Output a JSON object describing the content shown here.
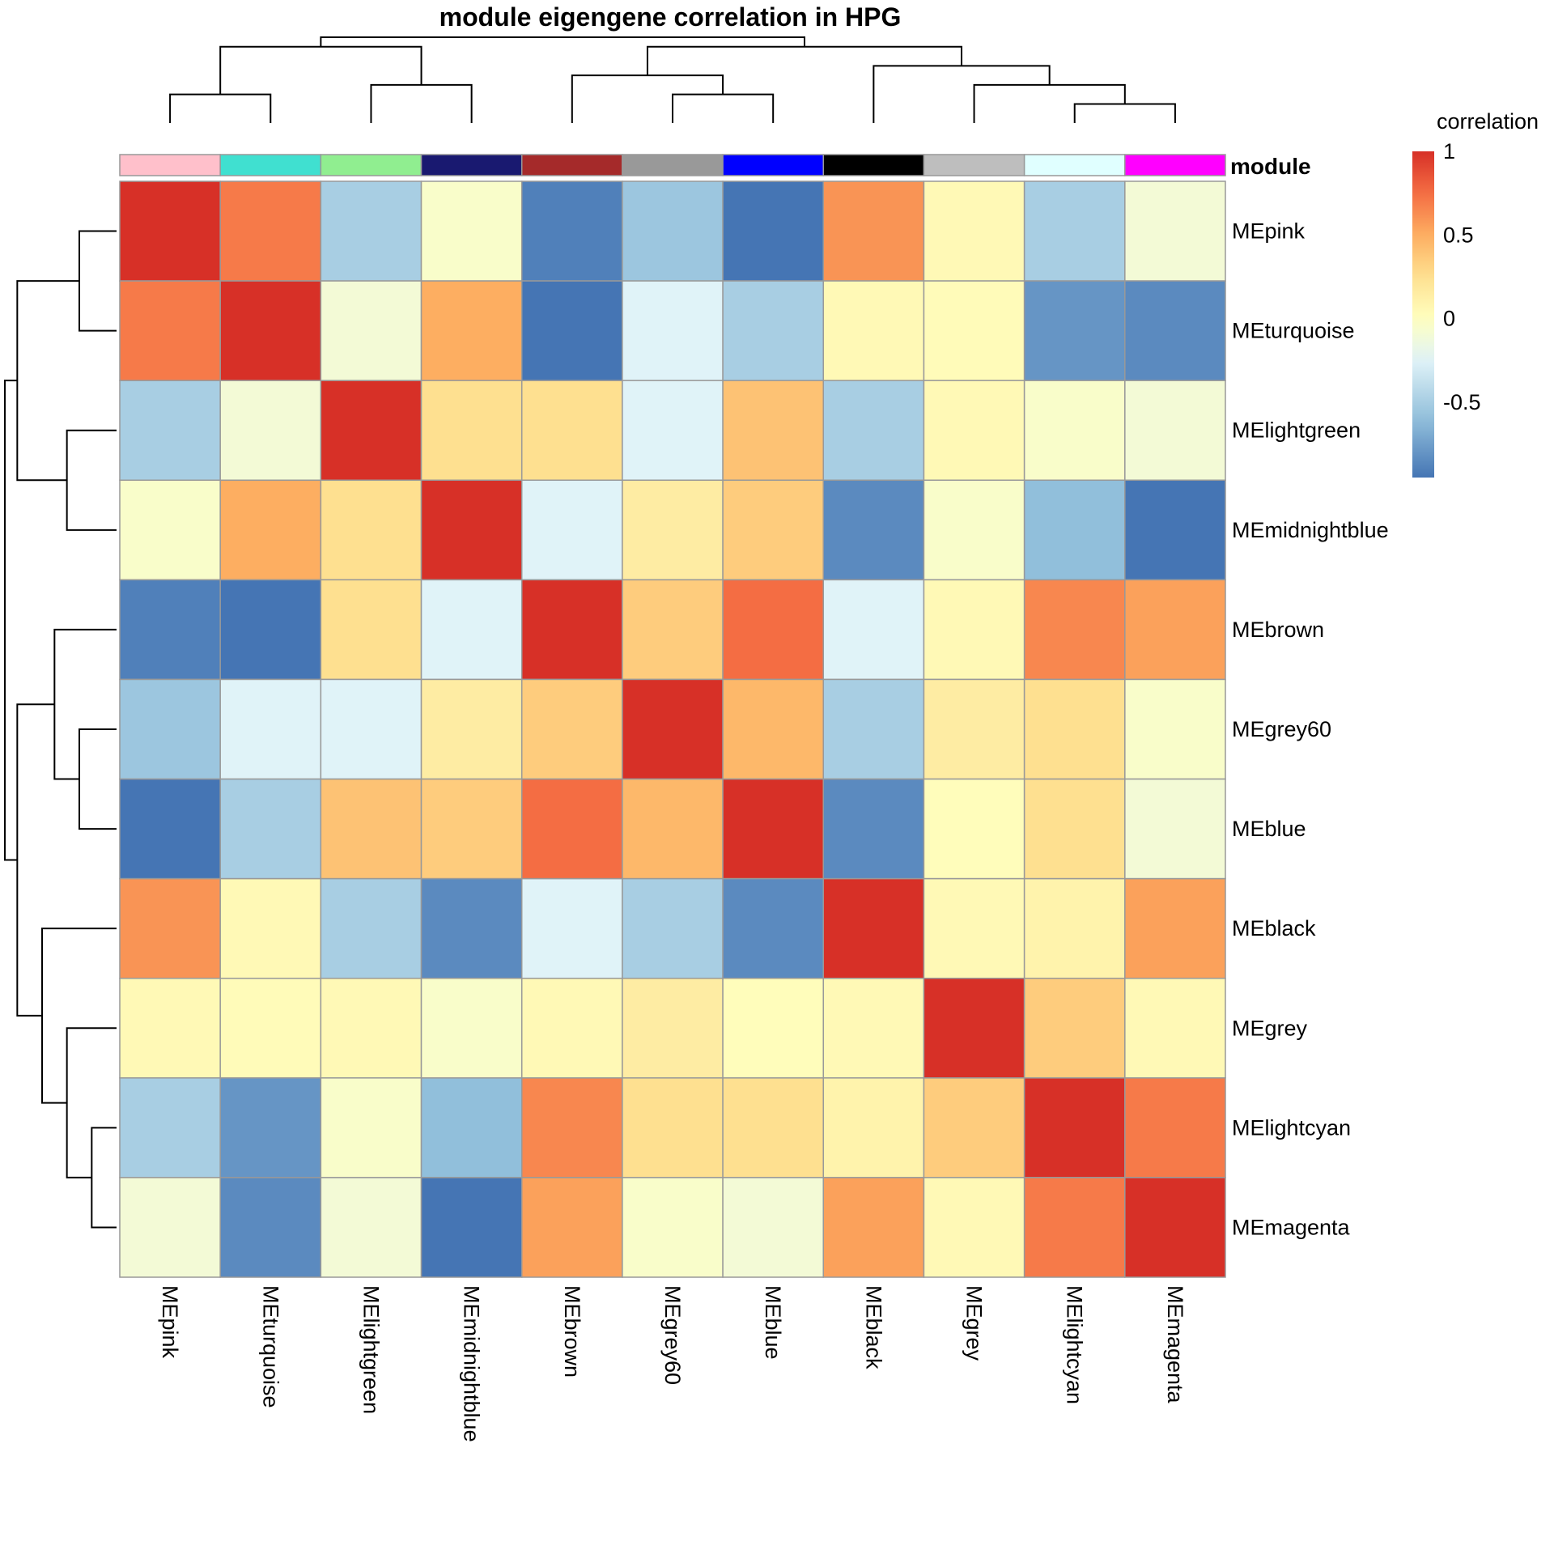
{
  "chart_data": {
    "type": "heatmap",
    "title": "module eigengene correlation in HPG",
    "rows": [
      "MEpink",
      "MEturquoise",
      "MElightgreen",
      "MEmidnightblue",
      "MEbrown",
      "MEgrey60",
      "MEblue",
      "MEblack",
      "MEgrey",
      "MElightcyan",
      "MEmagenta"
    ],
    "columns": [
      "MEpink",
      "MEturquoise",
      "MElightgreen",
      "MEmidnightblue",
      "MEbrown",
      "MEgrey60",
      "MEblue",
      "MEblack",
      "MEgrey",
      "MElightcyan",
      "MEmagenta"
    ],
    "values": [
      [
        1.0,
        0.7,
        -0.5,
        -0.05,
        -0.9,
        -0.55,
        -0.95,
        0.6,
        0.05,
        -0.5,
        -0.1
      ],
      [
        0.7,
        1.0,
        -0.1,
        0.5,
        -0.95,
        -0.25,
        -0.5,
        0.05,
        0.03,
        -0.8,
        -0.85
      ],
      [
        -0.5,
        -0.1,
        1.0,
        0.25,
        0.25,
        -0.25,
        0.4,
        -0.5,
        0.05,
        -0.05,
        -0.1
      ],
      [
        -0.05,
        0.5,
        0.25,
        1.0,
        -0.25,
        0.15,
        0.35,
        -0.85,
        -0.05,
        -0.6,
        -0.95
      ],
      [
        -0.9,
        -0.95,
        0.25,
        -0.25,
        1.0,
        0.35,
        0.75,
        -0.25,
        0.05,
        0.65,
        0.55
      ],
      [
        -0.55,
        -0.25,
        -0.25,
        0.15,
        0.35,
        1.0,
        0.45,
        -0.5,
        0.15,
        0.25,
        -0.05
      ],
      [
        -0.95,
        -0.5,
        0.4,
        0.35,
        0.75,
        0.45,
        1.0,
        -0.85,
        0.02,
        0.25,
        -0.1
      ],
      [
        0.6,
        0.05,
        -0.5,
        -0.85,
        -0.25,
        -0.5,
        -0.85,
        1.0,
        0.05,
        0.1,
        0.55
      ],
      [
        0.05,
        0.03,
        0.05,
        -0.05,
        0.05,
        0.15,
        0.02,
        0.05,
        1.0,
        0.35,
        0.05
      ],
      [
        -0.5,
        -0.8,
        -0.05,
        -0.6,
        0.65,
        0.25,
        0.25,
        0.1,
        0.35,
        1.0,
        0.7
      ],
      [
        -0.1,
        -0.85,
        -0.1,
        -0.95,
        0.55,
        -0.05,
        -0.1,
        0.55,
        0.05,
        0.7,
        1.0
      ]
    ],
    "module_annotation": {
      "label": "module",
      "colors": [
        "#FFC0CB",
        "#40E0D0",
        "#90EE90",
        "#191970",
        "#A52A2A",
        "#999999",
        "#0000FF",
        "#000000",
        "#BEBEBE",
        "#E0FFFF",
        "#FF00FF"
      ]
    },
    "legend": {
      "title": "correlation",
      "ticks": [
        "1",
        "0.5",
        "0",
        "-0.5"
      ],
      "tick_values": [
        1,
        0.5,
        0,
        -0.5
      ],
      "range": [
        -0.95,
        1.0
      ]
    },
    "colorscale": {
      "stops": [
        -0.95,
        -0.6,
        -0.25,
        0.0,
        0.25,
        0.5,
        0.75,
        1.0
      ],
      "colors": [
        "#4575B4",
        "#91BFDB",
        "#E0F3F8",
        "#FFFFBF",
        "#FEE090",
        "#FDAE61",
        "#F46D43",
        "#D73027"
      ]
    },
    "column_dendrogram": [
      [
        0,
        1
      ],
      [
        2,
        3
      ],
      [
        11,
        12
      ],
      [
        5,
        6
      ],
      [
        4,
        14
      ],
      [
        9,
        10
      ],
      [
        8,
        16
      ],
      [
        7,
        17
      ],
      [
        15,
        18
      ],
      [
        13,
        19
      ]
    ],
    "column_dendrogram_heights": [
      0.15,
      0.2,
      0.4,
      0.15,
      0.25,
      0.1,
      0.2,
      0.3,
      0.4,
      0.45
    ],
    "row_dendrogram": [
      [
        0,
        1
      ],
      [
        2,
        3
      ],
      [
        11,
        12
      ],
      [
        5,
        6
      ],
      [
        4,
        14
      ],
      [
        9,
        10
      ],
      [
        8,
        16
      ],
      [
        7,
        17
      ],
      [
        15,
        18
      ],
      [
        13,
        19
      ]
    ],
    "row_dendrogram_heights": [
      0.15,
      0.2,
      0.4,
      0.15,
      0.25,
      0.1,
      0.2,
      0.3,
      0.4,
      0.45
    ]
  }
}
